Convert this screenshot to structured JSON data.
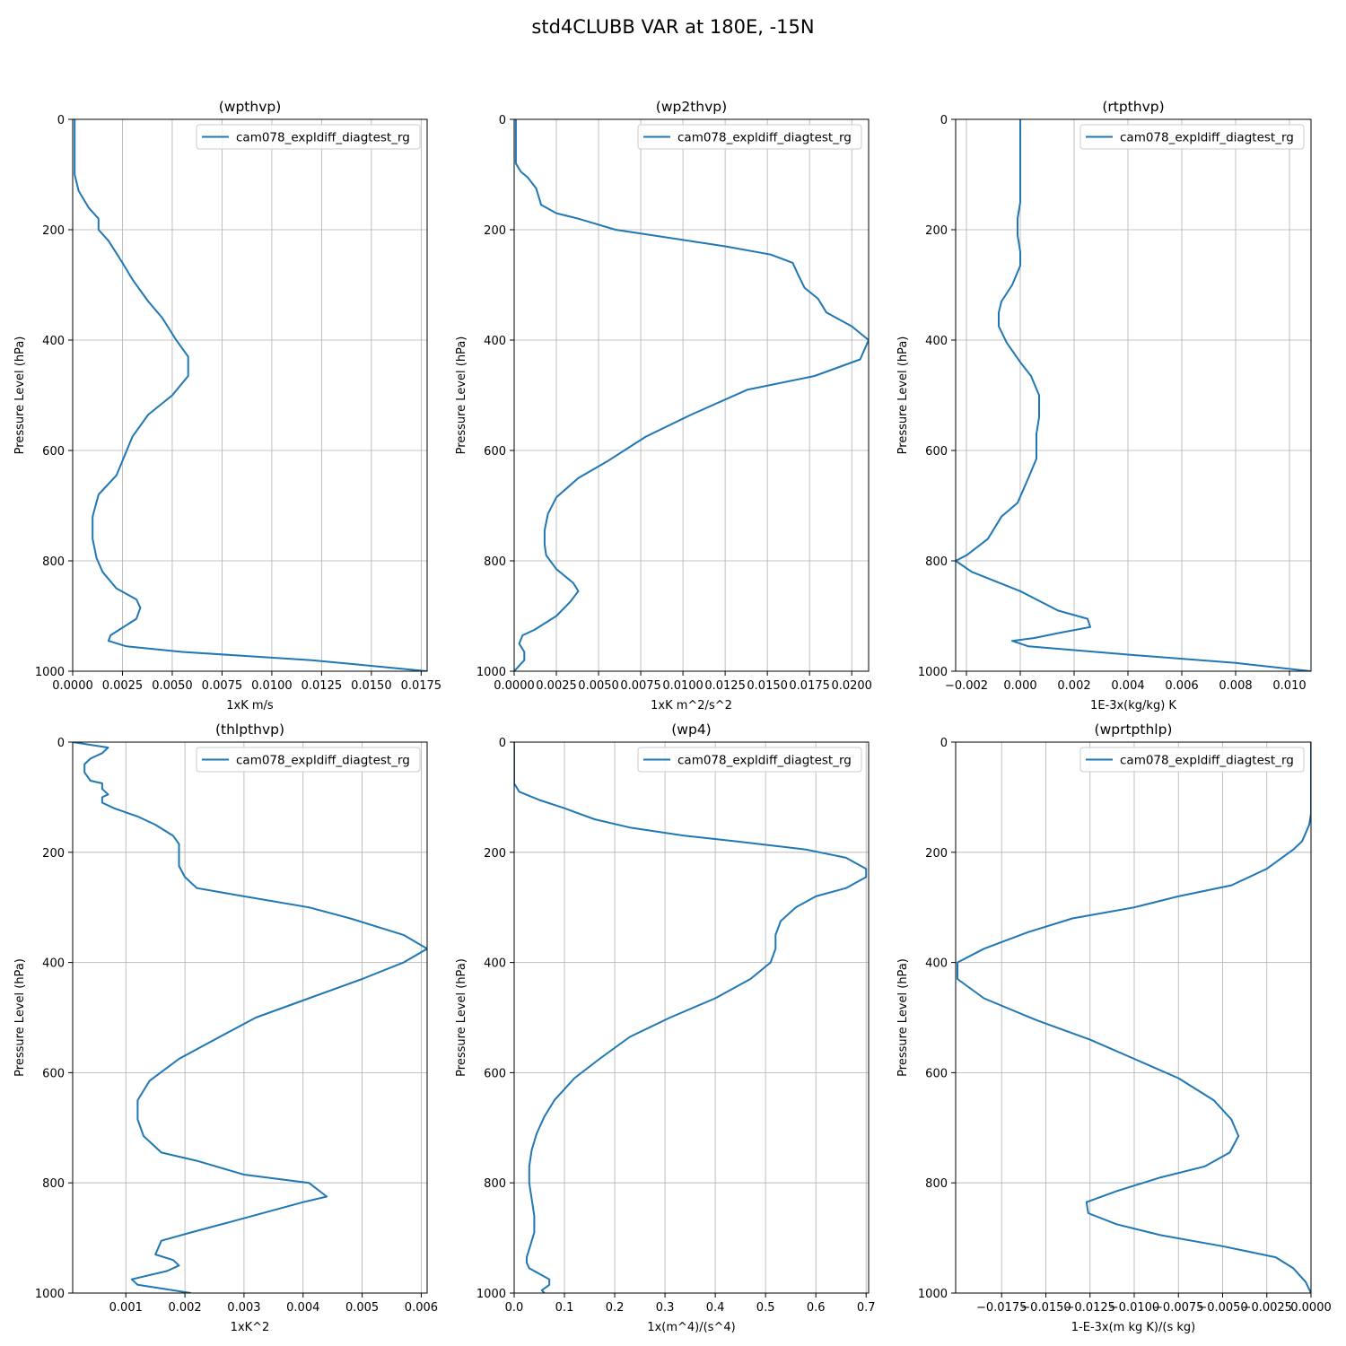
{
  "figure": {
    "title": "std4CLUBB VAR at 180E, -15N"
  },
  "style": {
    "line_color": "#1f77b4",
    "grid_color": "#b0b0b0",
    "axes_color": "#000000"
  },
  "chart_data": [
    {
      "type": "line",
      "title": "(wpthvp)",
      "xlabel": "1xK m/s",
      "ylabel": "Pressure Level (hPa)",
      "xlim": [
        0,
        0.0178
      ],
      "ylim": [
        1000,
        0
      ],
      "y_inverted": true,
      "grid": true,
      "legend": "top-right",
      "xticks": [
        0,
        0.0025,
        0.005,
        0.0075,
        0.01,
        0.0125,
        0.015,
        0.0175
      ],
      "xtick_labels": [
        "0.0000",
        "0.0025",
        "0.0050",
        "0.0075",
        "0.0100",
        "0.0125",
        "0.0150",
        "0.0175"
      ],
      "yticks": [
        0,
        200,
        400,
        600,
        800,
        1000
      ],
      "ytick_labels": [
        "0",
        "200",
        "400",
        "600",
        "800",
        "1000"
      ],
      "series": [
        {
          "name": "cam078_expldiff_diagtest_rg",
          "x": [
            0.0001,
            0.0001,
            0.0001,
            0.0001,
            0.0003,
            0.0008,
            0.0013,
            0.0013,
            0.0018,
            0.0025,
            0.003,
            0.0038,
            0.0045,
            0.0052,
            0.0058,
            0.0058,
            0.005,
            0.0038,
            0.003,
            0.0022,
            0.0013,
            0.001,
            0.001,
            0.0012,
            0.0015,
            0.0022,
            0.0032,
            0.0034,
            0.0032,
            0.0019,
            0.0018,
            0.0027,
            0.0055,
            0.012,
            0.0178
          ],
          "y": [
            0,
            40,
            80,
            100,
            130,
            160,
            180,
            200,
            220,
            260,
            290,
            330,
            360,
            400,
            430,
            465,
            500,
            535,
            575,
            645,
            680,
            720,
            760,
            795,
            820,
            850,
            870,
            885,
            905,
            935,
            945,
            955,
            965,
            980,
            1000
          ]
        }
      ]
    },
    {
      "type": "line",
      "title": "(wp2thvp)",
      "xlabel": "1xK m^2/s^2",
      "ylabel": "Pressure Level (hPa)",
      "xlim": [
        0,
        0.021
      ],
      "ylim": [
        1000,
        0
      ],
      "y_inverted": true,
      "grid": true,
      "legend": "top-right",
      "xticks": [
        0,
        0.0025,
        0.005,
        0.0075,
        0.01,
        0.0125,
        0.015,
        0.0175,
        0.02
      ],
      "xtick_labels": [
        "0.0000",
        "0.0025",
        "0.0050",
        "0.0075",
        "0.0100",
        "0.0125",
        "0.0150",
        "0.0175",
        "0.0200"
      ],
      "yticks": [
        0,
        200,
        400,
        600,
        800,
        1000
      ],
      "ytick_labels": [
        "0",
        "200",
        "400",
        "600",
        "800",
        "1000"
      ],
      "series": [
        {
          "name": "cam078_expldiff_diagtest_rg",
          "x": [
            0.0001,
            0.0001,
            0.0001,
            0.0004,
            0.0008,
            0.0013,
            0.0016,
            0.0025,
            0.0038,
            0.006,
            0.0125,
            0.0152,
            0.0165,
            0.0168,
            0.0172,
            0.018,
            0.0185,
            0.02,
            0.021,
            0.0205,
            0.0178,
            0.0138,
            0.0105,
            0.0078,
            0.0055,
            0.0038,
            0.0025,
            0.002,
            0.0018,
            0.0018,
            0.0019,
            0.0025,
            0.0035,
            0.0038,
            0.0033,
            0.0025,
            0.0012,
            0.0005,
            0.0003,
            0.0006,
            0.0006,
            0
          ],
          "y": [
            0,
            40,
            80,
            95,
            105,
            125,
            155,
            170,
            180,
            200,
            230,
            245,
            260,
            280,
            305,
            325,
            350,
            375,
            400,
            435,
            465,
            490,
            535,
            575,
            620,
            650,
            685,
            715,
            745,
            770,
            790,
            815,
            840,
            855,
            875,
            900,
            925,
            935,
            950,
            965,
            980,
            1000
          ]
        }
      ]
    },
    {
      "type": "line",
      "title": "(rtpthvp)",
      "xlabel": "1E-3x(kg/kg) K",
      "ylabel": "Pressure Level (hPa)",
      "xlim": [
        -0.0024,
        0.0108
      ],
      "ylim": [
        1000,
        0
      ],
      "y_inverted": true,
      "grid": true,
      "legend": "top-right",
      "xticks": [
        -0.002,
        0,
        0.002,
        0.004,
        0.006,
        0.008,
        0.01
      ],
      "xtick_labels": [
        "−0.002",
        "0.000",
        "0.002",
        "0.004",
        "0.006",
        "0.008",
        "0.010"
      ],
      "yticks": [
        0,
        200,
        400,
        600,
        800,
        1000
      ],
      "ytick_labels": [
        "0",
        "200",
        "400",
        "600",
        "800",
        "1000"
      ],
      "series": [
        {
          "name": "cam078_expldiff_diagtest_rg",
          "x": [
            0,
            0,
            0,
            0,
            -0.0001,
            -0.0001,
            0.0,
            0.0,
            -0.0003,
            -0.0007,
            -0.0008,
            -0.0008,
            -0.0005,
            0,
            0.0004,
            0.0007,
            0.0007,
            0.0006,
            0.0006,
            0.0003,
            -0.0001,
            -0.0007,
            -0.0012,
            -0.002,
            -0.0024,
            -0.0018,
            0.0,
            0.0014,
            0.0025,
            0.0026,
            0.0015,
            0.0005,
            -0.0003,
            0.0003,
            0.004,
            0.008,
            0.0108
          ],
          "y": [
            0,
            50,
            100,
            150,
            180,
            210,
            240,
            265,
            300,
            330,
            350,
            375,
            405,
            440,
            465,
            500,
            540,
            570,
            615,
            650,
            695,
            720,
            760,
            790,
            800,
            820,
            855,
            890,
            905,
            920,
            930,
            940,
            945,
            955,
            970,
            985,
            1000
          ]
        }
      ]
    },
    {
      "type": "line",
      "title": "(thlpthvp)",
      "xlabel": "1xK^2",
      "ylabel": "Pressure Level (hPa)",
      "xlim": [
        0.0001,
        0.0061
      ],
      "ylim": [
        1000,
        0
      ],
      "y_inverted": true,
      "grid": true,
      "legend": "top-right",
      "xticks": [
        0.001,
        0.002,
        0.003,
        0.004,
        0.005,
        0.006
      ],
      "xtick_labels": [
        "0.001",
        "0.002",
        "0.003",
        "0.004",
        "0.005",
        "0.006"
      ],
      "yticks": [
        0,
        200,
        400,
        600,
        800,
        1000
      ],
      "ytick_labels": [
        "0",
        "200",
        "400",
        "600",
        "800",
        "1000"
      ],
      "series": [
        {
          "name": "cam078_expldiff_diagtest_rg",
          "x": [
            0.0001,
            0.0007,
            0.0006,
            0.0004,
            0.0003,
            0.0003,
            0.0004,
            0.0006,
            0.0006,
            0.0007,
            0.0006,
            0.0006,
            0.0008,
            0.0012,
            0.0015,
            0.0018,
            0.0019,
            0.0019,
            0.0019,
            0.0019,
            0.002,
            0.0022,
            0.003,
            0.0041,
            0.0048,
            0.0057,
            0.0061,
            0.0057,
            0.005,
            0.0041,
            0.0032,
            0.0025,
            0.0019,
            0.0014,
            0.0012,
            0.0012,
            0.0013,
            0.0016,
            0.0022,
            0.003,
            0.0041,
            0.0044,
            0.004,
            0.0028,
            0.0021,
            0.0016,
            0.0015,
            0.0018,
            0.0019,
            0.0017,
            0.0011,
            0.0012,
            0.0021
          ],
          "y": [
            0,
            10,
            20,
            30,
            40,
            55,
            70,
            75,
            85,
            95,
            100,
            110,
            120,
            135,
            150,
            170,
            185,
            200,
            210,
            225,
            245,
            265,
            280,
            300,
            320,
            350,
            375,
            400,
            430,
            465,
            500,
            540,
            575,
            615,
            650,
            685,
            715,
            745,
            760,
            785,
            800,
            825,
            835,
            870,
            890,
            905,
            930,
            940,
            950,
            960,
            975,
            985,
            1000
          ]
        }
      ]
    },
    {
      "type": "line",
      "title": "(wp4)",
      "xlabel": "1x(m^4)/(s^4)",
      "ylabel": "Pressure Level (hPa)",
      "xlim": [
        0,
        0.705
      ],
      "ylim": [
        1000,
        0
      ],
      "y_inverted": true,
      "grid": true,
      "legend": "top-right",
      "xticks": [
        0,
        0.1,
        0.2,
        0.3,
        0.4,
        0.5,
        0.6,
        0.7
      ],
      "xtick_labels": [
        "0.0",
        "0.1",
        "0.2",
        "0.3",
        "0.4",
        "0.5",
        "0.6",
        "0.7"
      ],
      "yticks": [
        0,
        200,
        400,
        600,
        800,
        1000
      ],
      "ytick_labels": [
        "0",
        "200",
        "400",
        "600",
        "800",
        "1000"
      ],
      "series": [
        {
          "name": "cam078_expldiff_diagtest_rg",
          "x": [
            0,
            0,
            0.01,
            0.05,
            0.1,
            0.16,
            0.23,
            0.34,
            0.44,
            0.58,
            0.66,
            0.7,
            0.7,
            0.66,
            0.6,
            0.56,
            0.53,
            0.52,
            0.52,
            0.51,
            0.47,
            0.4,
            0.31,
            0.23,
            0.17,
            0.12,
            0.08,
            0.06,
            0.045,
            0.035,
            0.03,
            0.03,
            0.035,
            0.04,
            0.04,
            0.03,
            0.025,
            0.025,
            0.03,
            0.05,
            0.07,
            0.07,
            0.055,
            0.06
          ],
          "y": [
            0,
            75,
            90,
            105,
            120,
            140,
            155,
            170,
            180,
            195,
            210,
            230,
            245,
            265,
            280,
            300,
            325,
            350,
            375,
            400,
            430,
            465,
            500,
            535,
            575,
            610,
            650,
            680,
            710,
            740,
            770,
            800,
            830,
            860,
            890,
            920,
            935,
            945,
            955,
            965,
            975,
            985,
            995,
            1000
          ]
        }
      ]
    },
    {
      "type": "line",
      "title": "(wprtpthlp)",
      "xlabel": "1-E-3x(m kg K)/(s kg)",
      "ylabel": "Pressure Level (hPa)",
      "xlim": [
        -0.0201,
        0
      ],
      "ylim": [
        1000,
        0
      ],
      "y_inverted": true,
      "grid": true,
      "legend": "top-right",
      "xticks": [
        -0.0175,
        -0.015,
        -0.0125,
        -0.01,
        -0.0075,
        -0.005,
        -0.0025,
        0
      ],
      "xtick_labels": [
        "−0.0175",
        "−0.0150",
        "−0.0125",
        "−0.0100",
        "−0.0075",
        "−0.0050",
        "−0.0025",
        "0.0000"
      ],
      "yticks": [
        0,
        200,
        400,
        600,
        800,
        1000
      ],
      "ytick_labels": [
        "0",
        "200",
        "400",
        "600",
        "800",
        "1000"
      ],
      "series": [
        {
          "name": "cam078_expldiff_diagtest_rg",
          "x": [
            0,
            0,
            0,
            -0.0001,
            -0.0003,
            -0.0005,
            -0.001,
            -0.0025,
            -0.0045,
            -0.0075,
            -0.01,
            -0.0135,
            -0.016,
            -0.0185,
            -0.02,
            -0.02,
            -0.0185,
            -0.0155,
            -0.0125,
            -0.01,
            -0.0075,
            -0.0055,
            -0.0045,
            -0.0041,
            -0.0046,
            -0.006,
            -0.0085,
            -0.011,
            -0.0127,
            -0.0126,
            -0.011,
            -0.0085,
            -0.005,
            -0.002,
            -0.001,
            -0.0003,
            0
          ],
          "y": [
            0,
            80,
            130,
            150,
            165,
            180,
            195,
            230,
            260,
            280,
            300,
            320,
            345,
            375,
            400,
            430,
            465,
            505,
            540,
            575,
            610,
            650,
            685,
            715,
            745,
            770,
            790,
            815,
            835,
            855,
            875,
            895,
            915,
            935,
            955,
            980,
            1000
          ]
        }
      ]
    }
  ]
}
